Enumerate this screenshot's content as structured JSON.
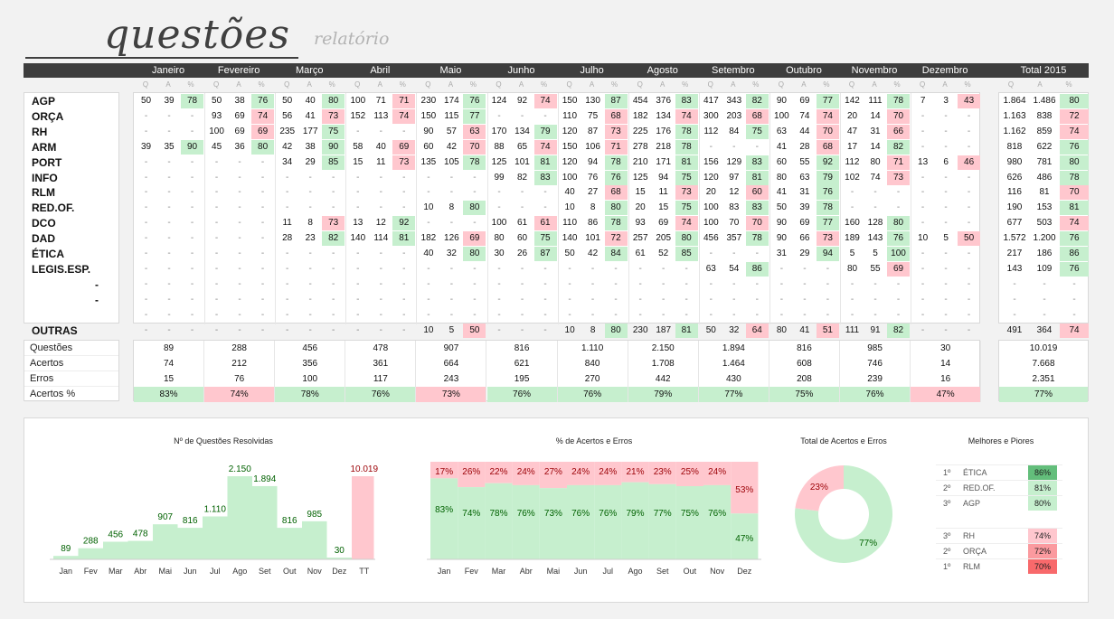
{
  "header": {
    "title": "questões",
    "subtitle": "relatório"
  },
  "months": [
    "Janeiro",
    "Fevereiro",
    "Março",
    "Abril",
    "Maio",
    "Junho",
    "Julho",
    "Agosto",
    "Setembro",
    "Outubro",
    "Novembro",
    "Dezembro"
  ],
  "total_label": "Total 2015",
  "sublabels": {
    "q": "Q",
    "a": "A",
    "p": "%"
  },
  "categories": [
    "AGP",
    "ORÇA",
    "RH",
    "ARM",
    "PORT",
    "INFO",
    "RLM",
    "RED.OF.",
    "DCO",
    "DAD",
    "ÉTICA",
    "LEGIS.ESP.",
    "-",
    "-",
    "",
    "OUTRAS"
  ],
  "rows": [
    [
      [
        "50",
        "39",
        "78"
      ],
      [
        "50",
        "38",
        "76"
      ],
      [
        "50",
        "40",
        "80"
      ],
      [
        "100",
        "71",
        "71"
      ],
      [
        "230",
        "174",
        "76"
      ],
      [
        "124",
        "92",
        "74"
      ],
      [
        "150",
        "130",
        "87"
      ],
      [
        "454",
        "376",
        "83"
      ],
      [
        "417",
        "343",
        "82"
      ],
      [
        "90",
        "69",
        "77"
      ],
      [
        "142",
        "111",
        "78"
      ],
      [
        "7",
        "3",
        "43"
      ]
    ],
    [
      [
        "-",
        "-",
        "-"
      ],
      [
        "93",
        "69",
        "74"
      ],
      [
        "56",
        "41",
        "73"
      ],
      [
        "152",
        "113",
        "74"
      ],
      [
        "150",
        "115",
        "77"
      ],
      [
        "-",
        "-",
        "-"
      ],
      [
        "110",
        "75",
        "68"
      ],
      [
        "182",
        "134",
        "74"
      ],
      [
        "300",
        "203",
        "68"
      ],
      [
        "100",
        "74",
        "74"
      ],
      [
        "20",
        "14",
        "70"
      ],
      [
        "-",
        "-",
        "-"
      ]
    ],
    [
      [
        "-",
        "-",
        "-"
      ],
      [
        "100",
        "69",
        "69"
      ],
      [
        "235",
        "177",
        "75"
      ],
      [
        "-",
        "-",
        "-"
      ],
      [
        "90",
        "57",
        "63"
      ],
      [
        "170",
        "134",
        "79"
      ],
      [
        "120",
        "87",
        "73"
      ],
      [
        "225",
        "176",
        "78"
      ],
      [
        "112",
        "84",
        "75"
      ],
      [
        "63",
        "44",
        "70"
      ],
      [
        "47",
        "31",
        "66"
      ],
      [
        "-",
        "-",
        "-"
      ]
    ],
    [
      [
        "39",
        "35",
        "90"
      ],
      [
        "45",
        "36",
        "80"
      ],
      [
        "42",
        "38",
        "90"
      ],
      [
        "58",
        "40",
        "69"
      ],
      [
        "60",
        "42",
        "70"
      ],
      [
        "88",
        "65",
        "74"
      ],
      [
        "150",
        "106",
        "71"
      ],
      [
        "278",
        "218",
        "78"
      ],
      [
        "-",
        "-",
        "-"
      ],
      [
        "41",
        "28",
        "68"
      ],
      [
        "17",
        "14",
        "82"
      ],
      [
        "-",
        "-",
        "-"
      ]
    ],
    [
      [
        "-",
        "-",
        "-"
      ],
      [
        "-",
        "-",
        "-"
      ],
      [
        "34",
        "29",
        "85"
      ],
      [
        "15",
        "11",
        "73"
      ],
      [
        "135",
        "105",
        "78"
      ],
      [
        "125",
        "101",
        "81"
      ],
      [
        "120",
        "94",
        "78"
      ],
      [
        "210",
        "171",
        "81"
      ],
      [
        "156",
        "129",
        "83"
      ],
      [
        "60",
        "55",
        "92"
      ],
      [
        "112",
        "80",
        "71"
      ],
      [
        "13",
        "6",
        "46"
      ]
    ],
    [
      [
        "-",
        "-",
        "-"
      ],
      [
        "-",
        "-",
        "-"
      ],
      [
        "-",
        "-",
        "-"
      ],
      [
        "-",
        "-",
        "-"
      ],
      [
        "-",
        "-",
        "-"
      ],
      [
        "99",
        "82",
        "83"
      ],
      [
        "100",
        "76",
        "76"
      ],
      [
        "125",
        "94",
        "75"
      ],
      [
        "120",
        "97",
        "81"
      ],
      [
        "80",
        "63",
        "79"
      ],
      [
        "102",
        "74",
        "73"
      ],
      [
        "-",
        "-",
        "-"
      ]
    ],
    [
      [
        "-",
        "-",
        "-"
      ],
      [
        "-",
        "-",
        "-"
      ],
      [
        "-",
        "-",
        "-"
      ],
      [
        "-",
        "-",
        "-"
      ],
      [
        "-",
        "-",
        "-"
      ],
      [
        "-",
        "-",
        "-"
      ],
      [
        "40",
        "27",
        "68"
      ],
      [
        "15",
        "11",
        "73"
      ],
      [
        "20",
        "12",
        "60"
      ],
      [
        "41",
        "31",
        "76"
      ],
      [
        "-",
        "-",
        "-"
      ],
      [
        "-",
        "-",
        "-"
      ]
    ],
    [
      [
        "-",
        "-",
        "-"
      ],
      [
        "-",
        "-",
        "-"
      ],
      [
        "-",
        "-",
        "-"
      ],
      [
        "-",
        "-",
        "-"
      ],
      [
        "10",
        "8",
        "80"
      ],
      [
        "-",
        "-",
        "-"
      ],
      [
        "10",
        "8",
        "80"
      ],
      [
        "20",
        "15",
        "75"
      ],
      [
        "100",
        "83",
        "83"
      ],
      [
        "50",
        "39",
        "78"
      ],
      [
        "-",
        "-",
        "-"
      ],
      [
        "-",
        "-",
        "-"
      ]
    ],
    [
      [
        "-",
        "-",
        "-"
      ],
      [
        "-",
        "-",
        "-"
      ],
      [
        "11",
        "8",
        "73"
      ],
      [
        "13",
        "12",
        "92"
      ],
      [
        "-",
        "-",
        "-"
      ],
      [
        "100",
        "61",
        "61"
      ],
      [
        "110",
        "86",
        "78"
      ],
      [
        "93",
        "69",
        "74"
      ],
      [
        "100",
        "70",
        "70"
      ],
      [
        "90",
        "69",
        "77"
      ],
      [
        "160",
        "128",
        "80"
      ],
      [
        "-",
        "-",
        "-"
      ]
    ],
    [
      [
        "-",
        "-",
        "-"
      ],
      [
        "-",
        "-",
        "-"
      ],
      [
        "28",
        "23",
        "82"
      ],
      [
        "140",
        "114",
        "81"
      ],
      [
        "182",
        "126",
        "69"
      ],
      [
        "80",
        "60",
        "75"
      ],
      [
        "140",
        "101",
        "72"
      ],
      [
        "257",
        "205",
        "80"
      ],
      [
        "456",
        "357",
        "78"
      ],
      [
        "90",
        "66",
        "73"
      ],
      [
        "189",
        "143",
        "76"
      ],
      [
        "10",
        "5",
        "50"
      ]
    ],
    [
      [
        "-",
        "-",
        "-"
      ],
      [
        "-",
        "-",
        "-"
      ],
      [
        "-",
        "-",
        "-"
      ],
      [
        "-",
        "-",
        "-"
      ],
      [
        "40",
        "32",
        "80"
      ],
      [
        "30",
        "26",
        "87"
      ],
      [
        "50",
        "42",
        "84"
      ],
      [
        "61",
        "52",
        "85"
      ],
      [
        "-",
        "-",
        "-"
      ],
      [
        "31",
        "29",
        "94"
      ],
      [
        "5",
        "5",
        "100"
      ],
      [
        "-",
        "-",
        "-"
      ]
    ],
    [
      [
        "-",
        "-",
        "-"
      ],
      [
        "-",
        "-",
        "-"
      ],
      [
        "-",
        "-",
        "-"
      ],
      [
        "-",
        "-",
        "-"
      ],
      [
        "-",
        "-",
        "-"
      ],
      [
        "-",
        "-",
        "-"
      ],
      [
        "-",
        "-",
        "-"
      ],
      [
        "-",
        "-",
        "-"
      ],
      [
        "63",
        "54",
        "86"
      ],
      [
        "-",
        "-",
        "-"
      ],
      [
        "80",
        "55",
        "69"
      ],
      [
        "-",
        "-",
        "-"
      ]
    ],
    [
      [
        "-",
        "-",
        "-"
      ],
      [
        "-",
        "-",
        "-"
      ],
      [
        "-",
        "-",
        "-"
      ],
      [
        "-",
        "-",
        "-"
      ],
      [
        "-",
        "-",
        "-"
      ],
      [
        "-",
        "-",
        "-"
      ],
      [
        "-",
        "-",
        "-"
      ],
      [
        "-",
        "-",
        "-"
      ],
      [
        "-",
        "-",
        "-"
      ],
      [
        "-",
        "-",
        "-"
      ],
      [
        "-",
        "-",
        "-"
      ],
      [
        "-",
        "-",
        "-"
      ]
    ],
    [
      [
        "-",
        "-",
        "-"
      ],
      [
        "-",
        "-",
        "-"
      ],
      [
        "-",
        "-",
        "-"
      ],
      [
        "-",
        "-",
        "-"
      ],
      [
        "-",
        "-",
        "-"
      ],
      [
        "-",
        "-",
        "-"
      ],
      [
        "-",
        "-",
        "-"
      ],
      [
        "-",
        "-",
        "-"
      ],
      [
        "-",
        "-",
        "-"
      ],
      [
        "-",
        "-",
        "-"
      ],
      [
        "-",
        "-",
        "-"
      ],
      [
        "-",
        "-",
        "-"
      ]
    ],
    [
      [
        "-",
        "-",
        "-"
      ],
      [
        "-",
        "-",
        "-"
      ],
      [
        "-",
        "-",
        "-"
      ],
      [
        "-",
        "-",
        "-"
      ],
      [
        "-",
        "-",
        "-"
      ],
      [
        "-",
        "-",
        "-"
      ],
      [
        "-",
        "-",
        "-"
      ],
      [
        "-",
        "-",
        "-"
      ],
      [
        "-",
        "-",
        "-"
      ],
      [
        "-",
        "-",
        "-"
      ],
      [
        "-",
        "-",
        "-"
      ],
      [
        "-",
        "-",
        "-"
      ]
    ],
    [
      [
        "-",
        "-",
        "-"
      ],
      [
        "-",
        "-",
        "-"
      ],
      [
        "-",
        "-",
        "-"
      ],
      [
        "-",
        "-",
        "-"
      ],
      [
        "10",
        "5",
        "50"
      ],
      [
        "-",
        "-",
        "-"
      ],
      [
        "10",
        "8",
        "80"
      ],
      [
        "230",
        "187",
        "81"
      ],
      [
        "50",
        "32",
        "64"
      ],
      [
        "80",
        "41",
        "51"
      ],
      [
        "111",
        "91",
        "82"
      ],
      [
        "-",
        "-",
        "-"
      ]
    ]
  ],
  "row_totals": [
    [
      "1.864",
      "1.486",
      "80"
    ],
    [
      "1.163",
      "838",
      "72"
    ],
    [
      "1.162",
      "859",
      "74"
    ],
    [
      "818",
      "622",
      "76"
    ],
    [
      "980",
      "781",
      "80"
    ],
    [
      "626",
      "486",
      "78"
    ],
    [
      "116",
      "81",
      "70"
    ],
    [
      "190",
      "153",
      "81"
    ],
    [
      "677",
      "503",
      "74"
    ],
    [
      "1.572",
      "1.200",
      "76"
    ],
    [
      "217",
      "186",
      "86"
    ],
    [
      "143",
      "109",
      "76"
    ],
    [
      "-",
      "-",
      "-"
    ],
    [
      "-",
      "-",
      "-"
    ],
    [
      "-",
      "-",
      "-"
    ],
    [
      "491",
      "364",
      "74"
    ]
  ],
  "summary": {
    "labels": [
      "Questões",
      "Acertos",
      "Erros",
      "Acertos %"
    ],
    "questoes": [
      "89",
      "288",
      "456",
      "478",
      "907",
      "816",
      "1.110",
      "2.150",
      "1.894",
      "816",
      "985",
      "30"
    ],
    "acertos": [
      "74",
      "212",
      "356",
      "361",
      "664",
      "621",
      "840",
      "1.708",
      "1.464",
      "608",
      "746",
      "14"
    ],
    "erros": [
      "15",
      "76",
      "100",
      "117",
      "243",
      "195",
      "270",
      "442",
      "430",
      "208",
      "239",
      "16"
    ],
    "pct": [
      "83%",
      "74%",
      "78%",
      "76%",
      "73%",
      "76%",
      "76%",
      "79%",
      "77%",
      "75%",
      "76%",
      "47%"
    ],
    "total": [
      "10.019",
      "7.668",
      "2.351",
      "77%"
    ]
  },
  "colors": {
    "green": "#c6efce",
    "red": "#ffc7ce",
    "dark_green": "#63be7b",
    "dark_red": "#f8696b",
    "header": "#3d3d3d"
  },
  "chart_data": [
    {
      "type": "bar",
      "title": "Nº de Questões Resolvidas",
      "categories": [
        "Jan",
        "Fev",
        "Mar",
        "Abr",
        "Mai",
        "Jun",
        "Jul",
        "Ago",
        "Set",
        "Out",
        "Nov",
        "Dez",
        "TT"
      ],
      "values": [
        89,
        288,
        456,
        478,
        907,
        816,
        1110,
        2150,
        1894,
        816,
        985,
        30,
        10019
      ],
      "labels": [
        "89",
        "288",
        "456",
        "478",
        "907",
        "816",
        "1.110",
        "2.150",
        "1.894",
        "816",
        "985",
        "30",
        "10.019"
      ]
    },
    {
      "type": "bar",
      "title": "% de Acertos e Erros",
      "categories": [
        "Jan",
        "Fev",
        "Mar",
        "Abr",
        "Mai",
        "Jun",
        "Jul",
        "Ago",
        "Set",
        "Out",
        "Nov",
        "Dez"
      ],
      "series": [
        {
          "values": [
            83,
            74,
            78,
            76,
            73,
            76,
            76,
            79,
            77,
            75,
            76,
            47
          ]
        },
        {
          "values": [
            17,
            26,
            22,
            24,
            27,
            24,
            24,
            21,
            23,
            25,
            24,
            53
          ]
        }
      ]
    },
    {
      "type": "pie",
      "title": "Total de Acertos e Erros",
      "values": [
        77,
        23
      ],
      "labels": [
        "77%",
        "23%"
      ]
    }
  ],
  "best_worst": {
    "title": "Melhores e Piores",
    "best": [
      {
        "rank": "1º",
        "name": "ÉTICA",
        "value": "86%"
      },
      {
        "rank": "2º",
        "name": "RED.OF.",
        "value": "81%"
      },
      {
        "rank": "3º",
        "name": "AGP",
        "value": "80%"
      }
    ],
    "worst": [
      {
        "rank": "3º",
        "name": "RH",
        "value": "74%"
      },
      {
        "rank": "2º",
        "name": "ORÇA",
        "value": "72%"
      },
      {
        "rank": "1º",
        "name": "RLM",
        "value": "70%"
      }
    ]
  }
}
